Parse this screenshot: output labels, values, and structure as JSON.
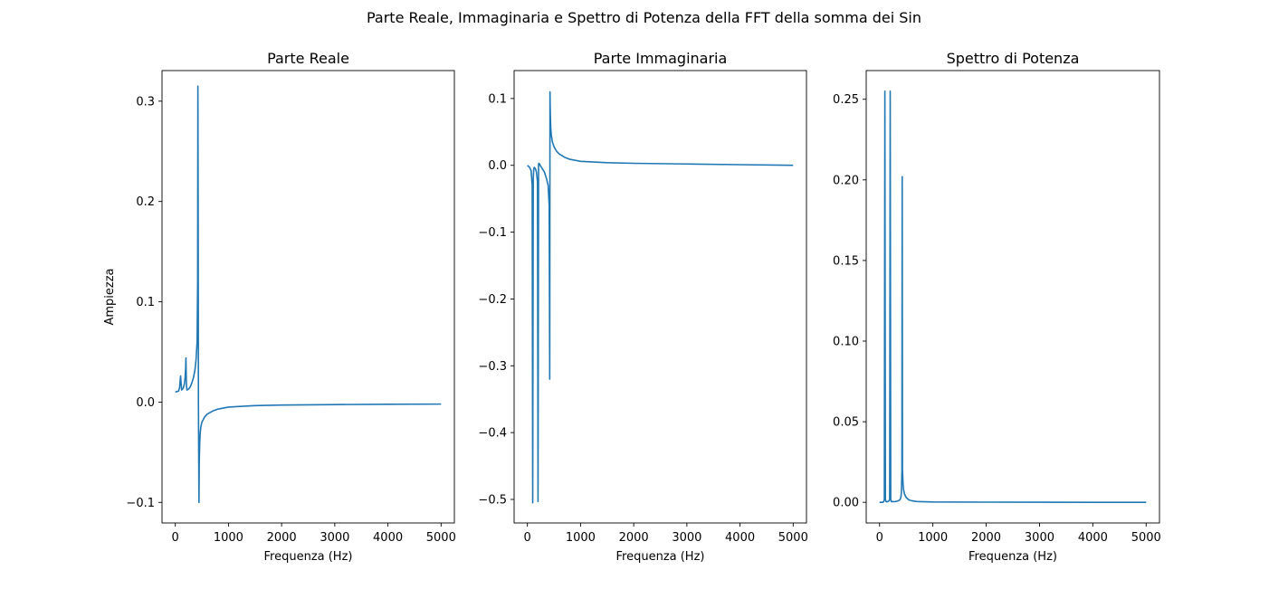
{
  "suptitle": "Parte Reale, Immaginaria e Spettro di Potenza della FFT della somma dei Sin",
  "colors": {
    "line": "#1f77b4",
    "axes": "#000000",
    "background": "#ffffff"
  },
  "chart_data": [
    {
      "type": "line",
      "title": "Parte Reale",
      "xlabel": "Frequenza (Hz)",
      "ylabel": "Ampiezza",
      "xlim": [
        -250,
        5250
      ],
      "ylim": [
        -0.1205,
        0.3305
      ],
      "xticks": [
        0,
        1000,
        2000,
        3000,
        4000,
        5000
      ],
      "xtick_labels": [
        "0",
        "1000",
        "2000",
        "3000",
        "4000",
        "5000"
      ],
      "yticks": [
        -0.1,
        0.0,
        0.1,
        0.2,
        0.3
      ],
      "ytick_labels": [
        "−0.1",
        "0.0",
        "0.1",
        "0.2",
        "0.3"
      ],
      "grid": false,
      "series": [
        {
          "x": [
            0,
            60,
            80,
            90,
            100,
            110,
            120,
            150,
            170,
            185,
            195,
            200,
            205,
            210,
            220,
            250,
            280,
            310,
            340,
            370,
            390,
            410,
            420,
            425,
            430,
            435,
            440,
            445,
            450,
            460,
            470,
            480,
            500,
            550,
            600,
            700,
            800,
            1000,
            1500,
            2000,
            3000,
            4000,
            5000
          ],
          "y": [
            0.01,
            0.011,
            0.014,
            0.021,
            0.026,
            0.018,
            0.012,
            0.014,
            0.018,
            0.025,
            0.034,
            0.044,
            0.028,
            0.016,
            0.012,
            0.013,
            0.015,
            0.019,
            0.024,
            0.032,
            0.042,
            0.06,
            0.12,
            0.315,
            0.2,
            0.0,
            -0.05,
            -0.1,
            -0.06,
            -0.04,
            -0.03,
            -0.025,
            -0.02,
            -0.015,
            -0.012,
            -0.009,
            -0.007,
            -0.005,
            -0.0035,
            -0.003,
            -0.0025,
            -0.0022,
            -0.002
          ]
        }
      ]
    },
    {
      "type": "line",
      "title": "Parte Immaginaria",
      "xlabel": "Frequenza (Hz)",
      "ylabel": "",
      "xlim": [
        -250,
        5250
      ],
      "ylim": [
        -0.5352,
        0.1418
      ],
      "xticks": [
        0,
        1000,
        2000,
        3000,
        4000,
        5000
      ],
      "xtick_labels": [
        "0",
        "1000",
        "2000",
        "3000",
        "4000",
        "5000"
      ],
      "yticks": [
        -0.5,
        -0.4,
        -0.3,
        -0.2,
        -0.1,
        0.0,
        0.1
      ],
      "ytick_labels": [
        "−0.5",
        "−0.4",
        "−0.3",
        "−0.2",
        "−0.1",
        "0.0",
        "0.1"
      ],
      "grid": false,
      "series": [
        {
          "x": [
            0,
            40,
            70,
            90,
            100,
            110,
            120,
            130,
            150,
            170,
            190,
            200,
            210,
            220,
            240,
            280,
            320,
            360,
            390,
            410,
            420,
            425,
            430,
            440,
            450,
            470,
            500,
            550,
            600,
            700,
            800,
            1000,
            1500,
            2000,
            3000,
            4000,
            5000
          ],
          "y": [
            0.0,
            -0.003,
            -0.008,
            -0.03,
            -0.505,
            -0.02,
            -0.005,
            -0.003,
            -0.005,
            -0.01,
            -0.025,
            -0.503,
            0.002,
            0.003,
            0.0,
            -0.005,
            -0.01,
            -0.02,
            -0.03,
            -0.06,
            -0.32,
            0.11,
            0.08,
            0.055,
            0.045,
            0.035,
            0.028,
            0.021,
            0.017,
            0.012,
            0.009,
            0.006,
            0.004,
            0.003,
            0.002,
            0.001,
            0.0
          ]
        }
      ]
    },
    {
      "type": "line",
      "title": "Spettro di Potenza",
      "xlabel": "Frequenza (Hz)",
      "ylabel": "",
      "xlim": [
        -250,
        5250
      ],
      "ylim": [
        -0.0128,
        0.2678
      ],
      "xticks": [
        0,
        1000,
        2000,
        3000,
        4000,
        5000
      ],
      "xtick_labels": [
        "0",
        "1000",
        "2000",
        "3000",
        "4000",
        "5000"
      ],
      "yticks": [
        0.0,
        0.05,
        0.1,
        0.15,
        0.2,
        0.25
      ],
      "ytick_labels": [
        "0.00",
        "0.05",
        "0.10",
        "0.15",
        "0.20",
        "0.25"
      ],
      "grid": false,
      "series": [
        {
          "x": [
            0,
            60,
            80,
            90,
            100,
            110,
            120,
            140,
            160,
            180,
            190,
            200,
            210,
            220,
            260,
            300,
            340,
            380,
            400,
            410,
            420,
            425,
            430,
            435,
            440,
            450,
            470,
            500,
            550,
            600,
            700,
            1000,
            2000,
            3000,
            4000,
            5000
          ],
          "y": [
            0.0,
            0.0,
            0.0005,
            0.002,
            0.255,
            0.002,
            0.0005,
            0.0003,
            0.0005,
            0.001,
            0.002,
            0.255,
            0.002,
            0.0004,
            0.0004,
            0.0005,
            0.0008,
            0.0015,
            0.003,
            0.006,
            0.02,
            0.202,
            0.02,
            0.016,
            0.012,
            0.008,
            0.005,
            0.003,
            0.0015,
            0.001,
            0.0005,
            0.0002,
            0.0001,
            5e-05,
            3e-05,
            2e-05
          ]
        }
      ]
    }
  ]
}
